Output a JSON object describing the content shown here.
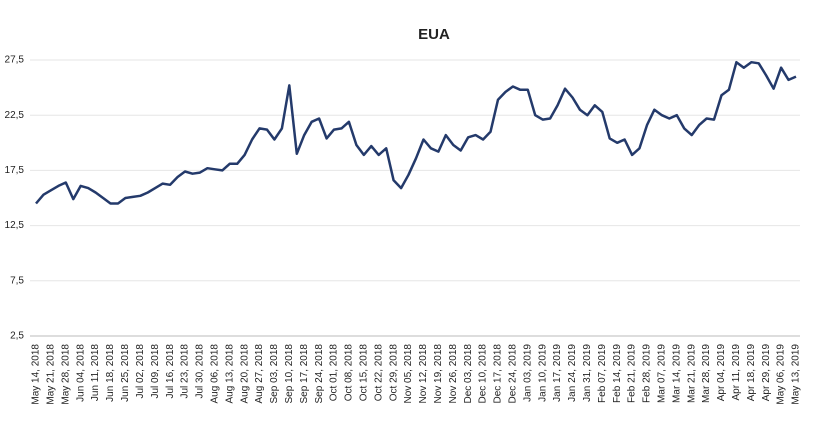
{
  "chart_data": {
    "type": "line",
    "title": "EUA",
    "categories": [
      "May 14, 2018",
      null,
      "May 21, 2018",
      null,
      "May 28, 2018",
      null,
      "Jun 04, 2018",
      null,
      "Jun 11, 2018",
      null,
      "Jun 18, 2018",
      null,
      "Jun 25, 2018",
      null,
      "Jul 02, 2018",
      null,
      "Jul 09, 2018",
      null,
      "Jul 16, 2018",
      null,
      "Jul 23, 2018",
      null,
      "Jul 30, 2018",
      null,
      "Aug 06, 2018",
      null,
      "Aug 13, 2018",
      null,
      "Aug 20, 2018",
      null,
      "Aug 27, 2018",
      null,
      "Sep 03, 2018",
      null,
      "Sep 10, 2018",
      null,
      "Sep 17, 2018",
      null,
      "Sep 24, 2018",
      null,
      "Oct 01, 2018",
      null,
      "Oct 08, 2018",
      null,
      "Oct 15, 2018",
      null,
      "Oct 22, 2018",
      null,
      "Oct 29, 2018",
      null,
      "Nov 05, 2018",
      null,
      "Nov 12, 2018",
      null,
      "Nov 19, 2018",
      null,
      "Nov 26, 2018",
      null,
      "Dec 03, 2018",
      null,
      "Dec 10, 2018",
      null,
      "Dec 17, 2018",
      null,
      "Dec 24, 2018",
      null,
      "Jan 03, 2019",
      null,
      "Jan 10, 2019",
      null,
      "Jan 17, 2019",
      null,
      "Jan 24, 2019",
      null,
      "Jan 31, 2019",
      null,
      "Feb 07, 2019",
      null,
      "Feb 14, 2019",
      null,
      "Feb 21, 2019",
      null,
      "Feb 28, 2019",
      null,
      "Mar 07, 2019",
      null,
      "Mar 14, 2019",
      null,
      "Mar 21, 2019",
      null,
      "Mar 28, 2019",
      null,
      "Apr 04, 2019",
      null,
      "Apr 11, 2019",
      null,
      "Apr 18, 2019",
      null,
      "Apr 29, 2019",
      null,
      "May 06, 2019",
      null,
      "May 13, 2019"
    ],
    "series": [
      {
        "color": "#243a6b",
        "values": [
          14.5,
          15.3,
          15.7,
          16.1,
          16.4,
          14.9,
          16.1,
          15.9,
          15.5,
          15.0,
          14.5,
          14.5,
          15.0,
          15.1,
          15.2,
          15.5,
          15.9,
          16.3,
          16.2,
          16.9,
          17.4,
          17.2,
          17.3,
          17.7,
          17.6,
          17.5,
          18.1,
          18.1,
          18.9,
          20.3,
          21.3,
          21.2,
          20.3,
          21.3,
          25.2,
          19.0,
          20.7,
          21.9,
          22.2,
          20.4,
          21.2,
          21.3,
          21.9,
          19.8,
          18.9,
          19.7,
          18.9,
          19.5,
          16.6,
          15.9,
          17.1,
          18.6,
          20.3,
          19.5,
          19.2,
          20.7,
          19.8,
          19.3,
          20.5,
          20.7,
          20.3,
          21.0,
          23.9,
          24.6,
          25.1,
          24.8,
          24.8,
          22.5,
          22.1,
          22.2,
          23.4,
          24.9,
          24.1,
          23.0,
          22.5,
          23.4,
          22.8,
          20.4,
          20.0,
          20.3,
          18.9,
          19.5,
          21.6,
          23.0,
          22.5,
          22.2,
          22.5,
          21.3,
          20.7,
          21.6,
          22.2,
          22.1,
          24.3,
          24.8,
          27.3,
          26.8,
          27.3,
          27.2,
          26.1,
          24.9,
          26.8,
          25.7,
          26.0
        ]
      }
    ],
    "ylim": [
      2.5,
      27.5
    ],
    "yticks": [
      {
        "value": 2.5,
        "label": "2,5"
      },
      {
        "value": 7.5,
        "label": "7,5"
      },
      {
        "value": 12.5,
        "label": "12,5"
      },
      {
        "value": 17.5,
        "label": "17,5"
      },
      {
        "value": 22.5,
        "label": "22,5"
      },
      {
        "value": 27.5,
        "label": "27,5"
      }
    ],
    "grid": true
  }
}
